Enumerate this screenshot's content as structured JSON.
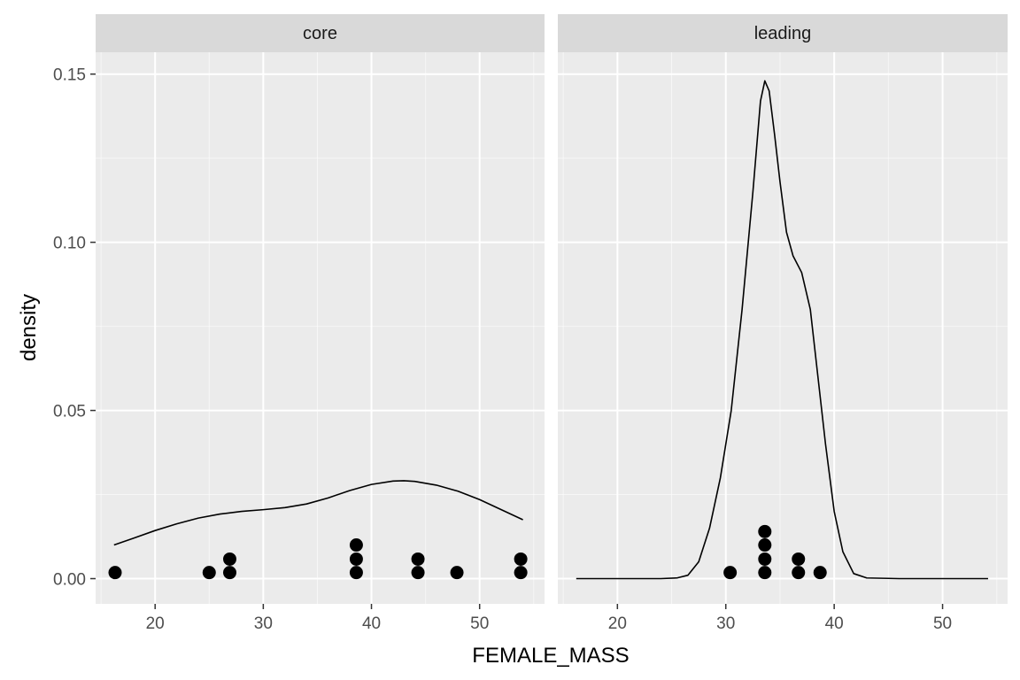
{
  "chart_data": {
    "type": "density",
    "xlabel": "FEMALE_MASS",
    "ylabel": "density",
    "xlim": [
      14.5,
      56.0
    ],
    "ylim": [
      -0.0075,
      0.1565
    ],
    "x_ticks": [
      20,
      30,
      40,
      50
    ],
    "x_tick_labels": [
      "20",
      "30",
      "40",
      "50"
    ],
    "y_ticks": [
      0.0,
      0.05,
      0.1,
      0.15
    ],
    "y_tick_labels": [
      "0.00",
      "0.05",
      "0.10",
      "0.15"
    ],
    "grid": true,
    "colors": {
      "panel_bg": "#ebebeb",
      "strip_bg": "#d9d9d9",
      "grid": "#ffffff",
      "line": "#000000",
      "points": "#000000"
    },
    "facets": [
      {
        "label": "core",
        "density_curve": [
          [
            16.2,
            0.01
          ],
          [
            18.0,
            0.012
          ],
          [
            20.0,
            0.0143
          ],
          [
            22.0,
            0.0163
          ],
          [
            24.0,
            0.018
          ],
          [
            26.0,
            0.0192
          ],
          [
            28.0,
            0.02
          ],
          [
            30.0,
            0.0205
          ],
          [
            32.0,
            0.0211
          ],
          [
            34.0,
            0.0222
          ],
          [
            36.0,
            0.024
          ],
          [
            38.0,
            0.0262
          ],
          [
            40.0,
            0.028
          ],
          [
            42.0,
            0.029
          ],
          [
            43.0,
            0.0291
          ],
          [
            44.0,
            0.0289
          ],
          [
            46.0,
            0.0278
          ],
          [
            48.0,
            0.026
          ],
          [
            50.0,
            0.0235
          ],
          [
            52.0,
            0.0205
          ],
          [
            54.0,
            0.0175
          ]
        ],
        "points": [
          [
            16.3,
            0.0018
          ],
          [
            25.0,
            0.0018
          ],
          [
            26.9,
            0.0018
          ],
          [
            26.9,
            0.0058
          ],
          [
            38.6,
            0.0018
          ],
          [
            38.6,
            0.0058
          ],
          [
            38.6,
            0.01
          ],
          [
            44.3,
            0.0018
          ],
          [
            44.3,
            0.0058
          ],
          [
            47.9,
            0.0018
          ],
          [
            53.8,
            0.0018
          ],
          [
            53.8,
            0.0058
          ]
        ]
      },
      {
        "label": "leading",
        "density_curve": [
          [
            16.2,
            0.0
          ],
          [
            20.0,
            0.0
          ],
          [
            24.0,
            0.0
          ],
          [
            25.5,
            0.0002
          ],
          [
            26.5,
            0.001
          ],
          [
            27.5,
            0.005
          ],
          [
            28.5,
            0.015
          ],
          [
            29.5,
            0.03
          ],
          [
            30.5,
            0.05
          ],
          [
            31.5,
            0.08
          ],
          [
            32.5,
            0.115
          ],
          [
            33.2,
            0.142
          ],
          [
            33.6,
            0.148
          ],
          [
            34.0,
            0.145
          ],
          [
            34.5,
            0.132
          ],
          [
            35.0,
            0.118
          ],
          [
            35.6,
            0.103
          ],
          [
            36.2,
            0.096
          ],
          [
            37.0,
            0.091
          ],
          [
            37.8,
            0.08
          ],
          [
            38.5,
            0.06
          ],
          [
            39.2,
            0.04
          ],
          [
            40.0,
            0.02
          ],
          [
            40.8,
            0.008
          ],
          [
            41.8,
            0.0015
          ],
          [
            43.0,
            0.0002
          ],
          [
            46.0,
            0.0
          ],
          [
            50.0,
            0.0
          ],
          [
            54.2,
            0.0
          ]
        ],
        "points": [
          [
            30.4,
            0.0018
          ],
          [
            33.6,
            0.0018
          ],
          [
            33.6,
            0.0058
          ],
          [
            33.6,
            0.01
          ],
          [
            33.6,
            0.014
          ],
          [
            36.7,
            0.0018
          ],
          [
            36.7,
            0.0058
          ],
          [
            38.7,
            0.0018
          ]
        ]
      }
    ]
  }
}
